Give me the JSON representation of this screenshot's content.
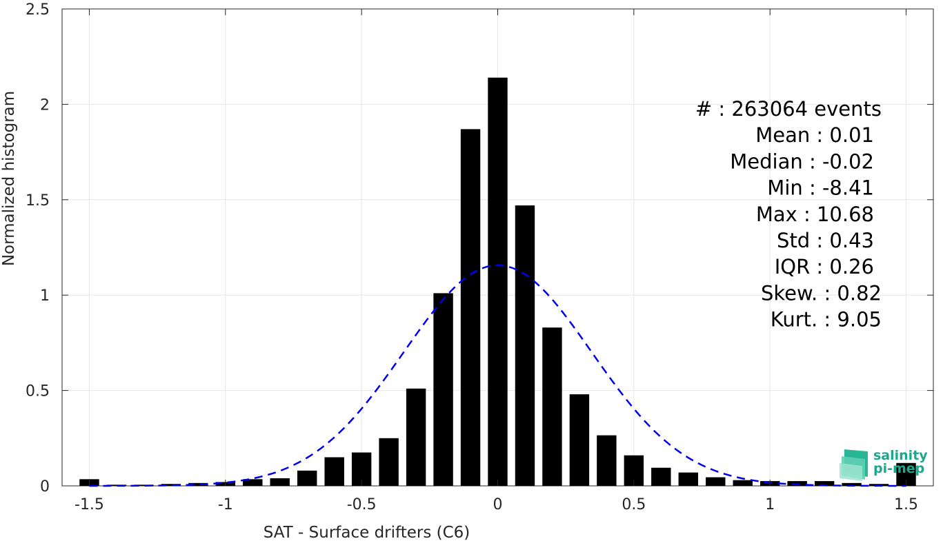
{
  "chart_data": {
    "type": "bar",
    "xlabel": "SAT - Surface drifters (C6)",
    "ylabel": "Normalized histogram",
    "xlim": [
      -1.6,
      1.6
    ],
    "ylim": [
      0,
      2.5
    ],
    "xticks": [
      -1.5,
      -1,
      -0.5,
      0,
      0.5,
      1,
      1.5
    ],
    "xtick_labels": [
      "-1.5",
      "-1",
      "-0.5",
      "0",
      "0.5",
      "1",
      "1.5"
    ],
    "yticks": [
      0,
      0.5,
      1,
      1.5,
      2,
      2.5
    ],
    "ytick_labels": [
      "0",
      "0.5",
      "1",
      "1.5",
      "2",
      "2.5"
    ],
    "grid": true,
    "bar_color": "#000000",
    "bin_width": 0.1,
    "x": [
      -1.5,
      -1.4,
      -1.3,
      -1.2,
      -1.1,
      -1.0,
      -0.9,
      -0.8,
      -0.7,
      -0.6,
      -0.5,
      -0.4,
      -0.3,
      -0.2,
      -0.1,
      0.0,
      0.1,
      0.2,
      0.3,
      0.4,
      0.5,
      0.6,
      0.7,
      0.8,
      0.9,
      1.0,
      1.1,
      1.2,
      1.3,
      1.4,
      1.5
    ],
    "values": [
      0.035,
      0.006,
      0.006,
      0.01,
      0.015,
      0.02,
      0.035,
      0.04,
      0.08,
      0.15,
      0.175,
      0.25,
      0.51,
      1.01,
      1.87,
      2.14,
      1.47,
      0.83,
      0.48,
      0.265,
      0.16,
      0.095,
      0.07,
      0.045,
      0.03,
      0.025,
      0.025,
      0.025,
      0.015,
      0.01,
      0.12
    ],
    "fit": {
      "type": "gaussian",
      "mean": 0.0,
      "std": 0.345,
      "color": "#0000ee",
      "style": "dashed"
    },
    "stats": [
      "#  : 263064 events",
      "Mean : 0.01",
      "Median : -0.02",
      "Min : -8.41",
      "Max : 10.68",
      "Std : 0.43",
      "IQR : 0.26",
      "Skew. : 0.82",
      "Kurt. : 9.05"
    ]
  },
  "logo": {
    "line1": "salinity",
    "line2": "pi-mep",
    "color": "#1aa98c"
  }
}
